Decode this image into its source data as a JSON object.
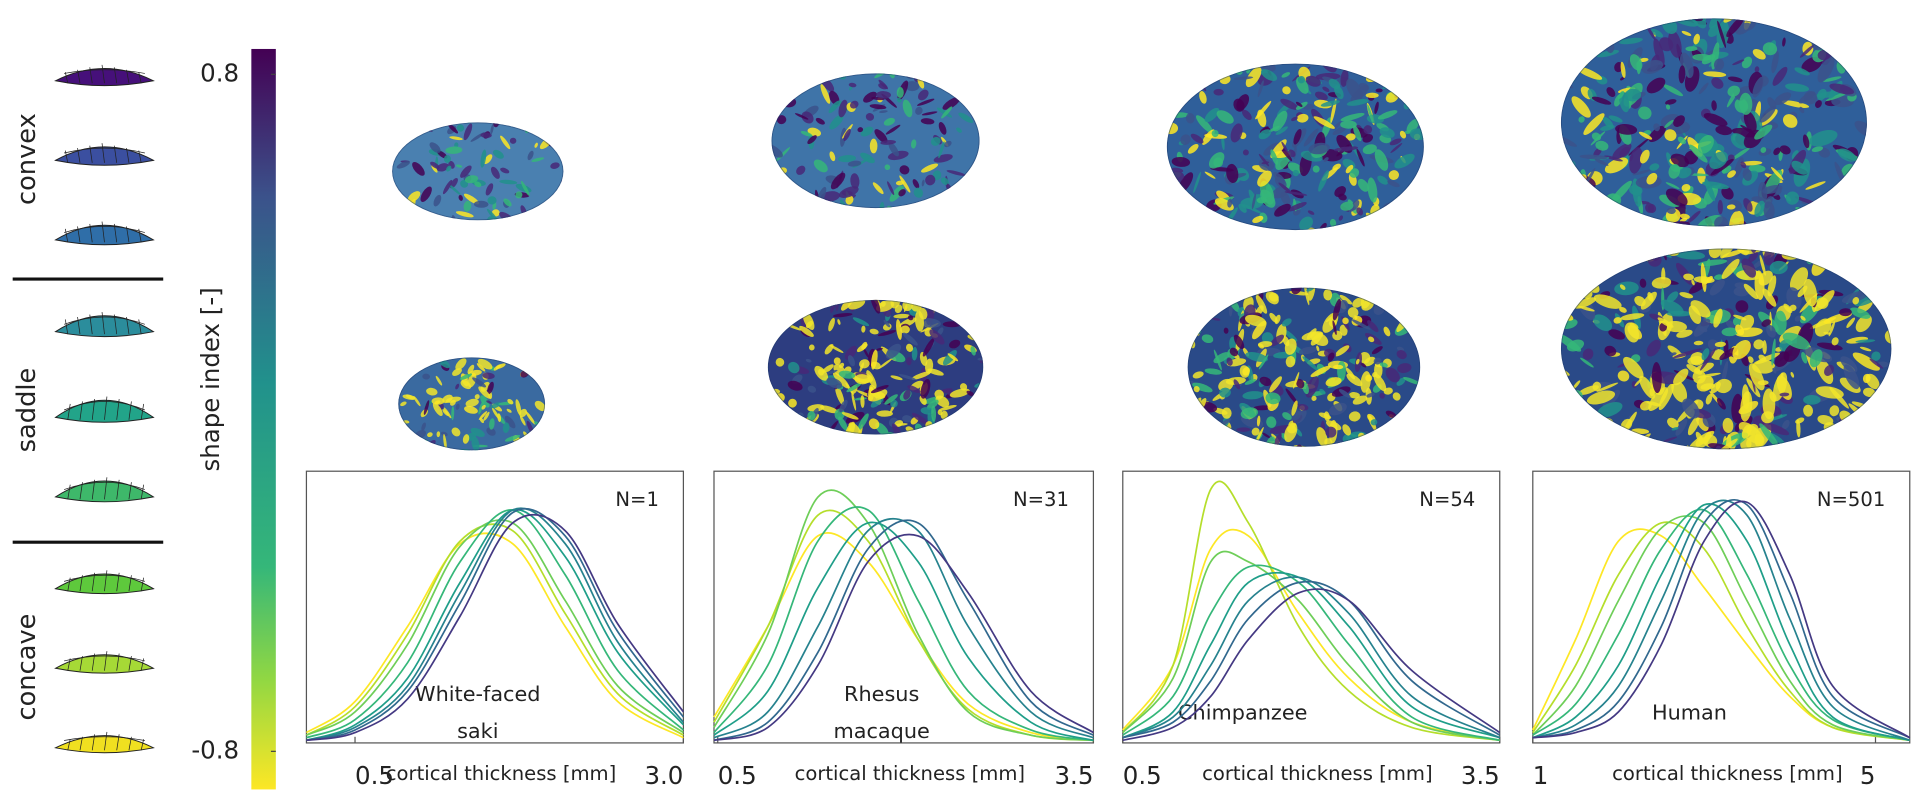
{
  "shape_groups": [
    "convex",
    "saddle",
    "concave"
  ],
  "colorbar": {
    "label": "shape index [-]",
    "lim": [
      -0.89,
      0.86
    ],
    "ticks": [
      0.8,
      -0.8
    ]
  },
  "chart_data": [
    {
      "type": "line",
      "annotation": "N=1",
      "species": [
        "White-faced",
        "saki"
      ],
      "xlabel": "cortical thickness [mm]",
      "xlim": [
        0.13,
        3.0
      ],
      "xticks": [
        0.5,
        {
          "value": 3,
          "label": "3.0"
        }
      ],
      "ylim": [
        0,
        1.05
      ],
      "x": [
        0.13,
        0.5,
        0.9,
        1.3,
        1.7,
        2.1,
        2.5,
        3.0
      ],
      "series": [
        {
          "color": "#fde725",
          "values": [
            0.04,
            0.16,
            0.45,
            0.77,
            0.77,
            0.45,
            0.16,
            0.02
          ]
        },
        {
          "color": "#b5de2b",
          "values": [
            0.03,
            0.14,
            0.42,
            0.78,
            0.82,
            0.5,
            0.19,
            0.03
          ]
        },
        {
          "color": "#6ece58",
          "values": [
            0.03,
            0.12,
            0.38,
            0.76,
            0.85,
            0.55,
            0.22,
            0.04
          ]
        },
        {
          "color": "#35b779",
          "values": [
            0.02,
            0.09,
            0.31,
            0.7,
            0.9,
            0.65,
            0.28,
            0.05
          ]
        },
        {
          "color": "#1f9e89",
          "values": [
            0.01,
            0.07,
            0.25,
            0.62,
            0.9,
            0.72,
            0.35,
            0.07
          ]
        },
        {
          "color": "#26828e",
          "values": [
            0.01,
            0.06,
            0.22,
            0.58,
            0.9,
            0.77,
            0.39,
            0.08
          ]
        },
        {
          "color": "#31688e",
          "values": [
            0.01,
            0.05,
            0.2,
            0.54,
            0.89,
            0.8,
            0.43,
            0.1
          ]
        },
        {
          "color": "#443983",
          "values": [
            0.01,
            0.04,
            0.17,
            0.49,
            0.85,
            0.82,
            0.46,
            0.12
          ]
        }
      ]
    },
    {
      "type": "line",
      "annotation": "N=31",
      "species": [
        "Rhesus",
        "macaque"
      ],
      "xlabel": "cortical thickness [mm]",
      "xlim": [
        0.47,
        3.5
      ],
      "xticks": [
        0.5,
        3.5
      ],
      "ylim": [
        0,
        1.05
      ],
      "x": [
        0.47,
        0.9,
        1.3,
        1.7,
        2.1,
        2.5,
        3.0,
        3.5
      ],
      "series": [
        {
          "color": "#fde725",
          "values": [
            0.1,
            0.45,
            0.8,
            0.7,
            0.4,
            0.15,
            0.04,
            0.01
          ]
        },
        {
          "color": "#b5de2b",
          "values": [
            0.08,
            0.45,
            0.88,
            0.78,
            0.4,
            0.13,
            0.03,
            0.01
          ]
        },
        {
          "color": "#6ece58",
          "values": [
            0.06,
            0.42,
            0.95,
            0.85,
            0.42,
            0.12,
            0.03,
            0.01
          ]
        },
        {
          "color": "#35b779",
          "values": [
            0.04,
            0.3,
            0.78,
            0.9,
            0.55,
            0.2,
            0.05,
            0.01
          ]
        },
        {
          "color": "#1f9e89",
          "values": [
            0.03,
            0.2,
            0.6,
            0.85,
            0.7,
            0.33,
            0.08,
            0.01
          ]
        },
        {
          "color": "#26828e",
          "values": [
            0.02,
            0.12,
            0.45,
            0.82,
            0.82,
            0.45,
            0.12,
            0.02
          ]
        },
        {
          "color": "#31688e",
          "values": [
            0.01,
            0.08,
            0.35,
            0.75,
            0.85,
            0.55,
            0.16,
            0.03
          ]
        },
        {
          "color": "#443983",
          "values": [
            0.01,
            0.06,
            0.3,
            0.7,
            0.8,
            0.58,
            0.2,
            0.04
          ]
        }
      ]
    },
    {
      "type": "line",
      "annotation": "N=54",
      "species": [
        "Chimpanzee"
      ],
      "xlabel": "cortical thickness [mm]",
      "xlim": [
        0.5,
        3.5
      ],
      "xticks": [
        0.5,
        3.5
      ],
      "ylim": [
        0,
        1.05
      ],
      "x": [
        0.5,
        0.9,
        1.2,
        1.5,
        1.9,
        2.3,
        2.8,
        3.5
      ],
      "series": [
        {
          "color": "#fde725",
          "values": [
            0.05,
            0.3,
            0.75,
            0.8,
            0.5,
            0.25,
            0.08,
            0.01
          ]
        },
        {
          "color": "#b5de2b",
          "values": [
            0.04,
            0.3,
            0.98,
            0.85,
            0.45,
            0.2,
            0.06,
            0.01
          ]
        },
        {
          "color": "#6ece58",
          "values": [
            0.04,
            0.25,
            0.7,
            0.7,
            0.55,
            0.3,
            0.08,
            0.01
          ]
        },
        {
          "color": "#35b779",
          "values": [
            0.03,
            0.18,
            0.5,
            0.68,
            0.62,
            0.38,
            0.1,
            0.01
          ]
        },
        {
          "color": "#1f9e89",
          "values": [
            0.02,
            0.12,
            0.38,
            0.62,
            0.64,
            0.45,
            0.14,
            0.02
          ]
        },
        {
          "color": "#26828e",
          "values": [
            0.02,
            0.1,
            0.3,
            0.55,
            0.64,
            0.5,
            0.18,
            0.02
          ]
        },
        {
          "color": "#31688e",
          "values": [
            0.02,
            0.08,
            0.24,
            0.48,
            0.62,
            0.55,
            0.24,
            0.03
          ]
        },
        {
          "color": "#443983",
          "values": [
            0.01,
            0.06,
            0.18,
            0.4,
            0.58,
            0.55,
            0.28,
            0.04
          ]
        }
      ]
    },
    {
      "type": "line",
      "annotation": "N=501",
      "species": [
        "Human"
      ],
      "xlabel": "cortical thickness [mm]",
      "xlim": [
        1,
        5.4
      ],
      "xticks": [
        1,
        5
      ],
      "ylim": [
        0,
        1.05
      ],
      "x": [
        1,
        1.5,
        2,
        2.5,
        3,
        3.5,
        4,
        4.5,
        5.4
      ],
      "series": [
        {
          "color": "#fde725",
          "values": [
            0.05,
            0.4,
            0.78,
            0.8,
            0.6,
            0.38,
            0.18,
            0.06,
            0.01
          ]
        },
        {
          "color": "#b5de2b",
          "values": [
            0.04,
            0.3,
            0.65,
            0.85,
            0.75,
            0.45,
            0.2,
            0.06,
            0.01
          ]
        },
        {
          "color": "#6ece58",
          "values": [
            0.03,
            0.22,
            0.55,
            0.83,
            0.85,
            0.55,
            0.24,
            0.07,
            0.01
          ]
        },
        {
          "color": "#35b779",
          "values": [
            0.03,
            0.15,
            0.42,
            0.75,
            0.9,
            0.65,
            0.3,
            0.09,
            0.01
          ]
        },
        {
          "color": "#1f9e89",
          "values": [
            0.02,
            0.1,
            0.3,
            0.65,
            0.92,
            0.78,
            0.38,
            0.1,
            0.01
          ]
        },
        {
          "color": "#26828e",
          "values": [
            0.02,
            0.07,
            0.22,
            0.55,
            0.9,
            0.88,
            0.48,
            0.14,
            0.01
          ]
        },
        {
          "color": "#31688e",
          "values": [
            0.02,
            0.05,
            0.16,
            0.45,
            0.85,
            0.92,
            0.58,
            0.18,
            0.02
          ]
        },
        {
          "color": "#443983",
          "values": [
            0.02,
            0.04,
            0.12,
            0.38,
            0.78,
            0.93,
            0.65,
            0.22,
            0.02
          ]
        }
      ]
    }
  ]
}
